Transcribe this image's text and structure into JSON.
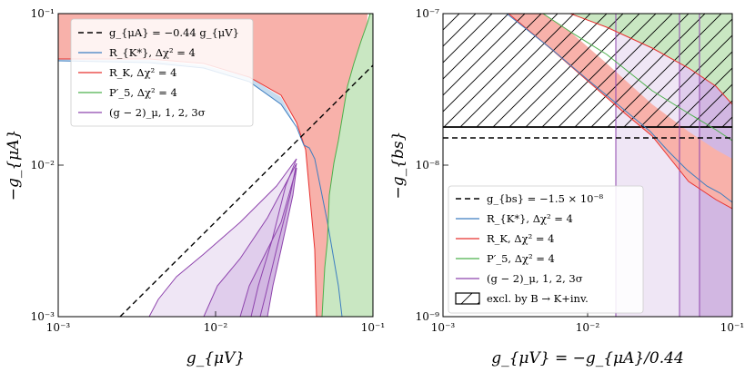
{
  "chart_data": [
    {
      "type": "line",
      "xlabel": "g_{μV}",
      "ylabel": "−g_{μA}",
      "xscale": "log",
      "yscale": "log",
      "xlim": [
        0.001,
        0.1
      ],
      "ylim": [
        0.001,
        0.1
      ],
      "x_ticks": [
        "10⁻³",
        "10⁻²",
        "10⁻¹"
      ],
      "y_ticks": [
        "10⁻³",
        "10⁻²",
        "10⁻¹"
      ],
      "legend": "top-left",
      "series": [
        {
          "name": "g_{μA} = −0.44 g_{μV}",
          "style": "dashed",
          "color": "#000000",
          "x": [
            0.00227,
            0.1
          ],
          "y": [
            0.001,
            0.044
          ]
        },
        {
          "name": "R_{K*}, Δχ² = 4",
          "style": "line",
          "color": "#3d7ec1",
          "x": [
            0.001,
            0.003,
            0.006,
            0.01,
            0.015,
            0.02,
            0.025,
            0.03,
            0.035,
            0.04,
            0.045,
            0.05,
            0.055,
            0.06,
            0.065,
            0.07,
            0.075
          ],
          "y": [
            0.046,
            0.045,
            0.042,
            0.038,
            0.032,
            0.027,
            0.023,
            0.02,
            0.018,
            0.0175,
            0.0165,
            0.011,
            0.0065,
            0.0035,
            0.002,
            0.0012,
            0.001
          ]
        },
        {
          "name": "R_K, Δχ² = 4",
          "style": "filled",
          "color": "#e8312f",
          "fill": "#f8b1aa",
          "x": [
            0.001,
            0.01,
            0.02,
            0.03,
            0.04,
            0.045,
            0.05,
            0.052,
            0.054
          ],
          "y": [
            0.05,
            0.045,
            0.035,
            0.025,
            0.017,
            0.01,
            0.005,
            0.002,
            0.001
          ]
        },
        {
          "name": "P′_5, Δχ² = 4",
          "style": "filled",
          "color": "#4cb04c",
          "fill": "#c9e7c2",
          "x": [
            0.057,
            0.06,
            0.063,
            0.067,
            0.07,
            0.075,
            0.08,
            0.09
          ],
          "y": [
            0.001,
            0.003,
            0.01,
            0.03,
            0.06,
            0.08,
            0.09,
            0.1
          ]
        },
        {
          "name": "(g − 2)_μ, 1, 2, 3σ",
          "style": "bands",
          "color": "#8e44ad",
          "fill": "#e0cdec",
          "x": [
            0.0038,
            0.006,
            0.01,
            0.015,
            0.02,
            0.03,
            0.04
          ],
          "y": [
            0.001,
            0.0018,
            0.003,
            0.0055,
            0.008,
            0.013,
            0.018
          ]
        }
      ]
    },
    {
      "type": "line",
      "xlabel": "g_{μV} = −g_{μA}/0.44",
      "ylabel": "−g_{bs}",
      "xscale": "log",
      "yscale": "log",
      "xlim": [
        0.001,
        0.1
      ],
      "ylim": [
        1e-09,
        1e-07
      ],
      "x_ticks": [
        "10⁻³",
        "10⁻²",
        "10⁻¹"
      ],
      "y_ticks": [
        "10⁻⁹",
        "10⁻⁸",
        "10⁻⁷"
      ],
      "legend": "bottom-left",
      "series": [
        {
          "name": "g_{bs} = −1.5 × 10⁻⁸",
          "style": "dashed",
          "color": "#000000",
          "x": [
            0.001,
            0.1
          ],
          "y": [
            1.5e-08,
            1.5e-08
          ]
        },
        {
          "name": "R_{K*}, Δχ² = 4",
          "style": "line",
          "color": "#3d7ec1",
          "x": [
            0.006,
            0.01,
            0.02,
            0.03,
            0.05,
            0.07,
            0.1
          ],
          "y": [
            1e-07,
            7e-08,
            3.5e-08,
            2.2e-08,
            1.3e-08,
            8.5e-09,
            5.5e-09
          ]
        },
        {
          "name": "R_K, Δχ² = 4",
          "style": "filled",
          "color": "#e8312f",
          "fill": "#f8b1aa",
          "x": [
            0.007,
            0.01,
            0.02,
            0.03,
            0.05,
            0.07,
            0.1
          ],
          "y": [
            1e-07,
            7.5e-08,
            3.5e-08,
            2.2e-08,
            1.2e-08,
            8e-09,
            5e-09
          ]
        },
        {
          "name": "P′_5, Δχ² = 4",
          "style": "filled",
          "color": "#4cb04c",
          "fill": "#c9e7c2",
          "x": [
            0.011,
            0.02,
            0.04,
            0.06,
            0.08,
            0.1
          ],
          "y": [
            1e-07,
            6e-08,
            3e-08,
            2e-08,
            1.5e-08,
            1.2e-08
          ]
        },
        {
          "name": "(g − 2)_μ, 1, 2, 3σ",
          "style": "bands",
          "color": "#8e44ad",
          "fill": "#e0cdec",
          "x_bounds": [
            0.016,
            0.044,
            0.06,
            0.1
          ]
        },
        {
          "name": "excl. by B → K+inv.",
          "style": "hatched",
          "color": "#000000",
          "y_range": [
            1.7e-08,
            1e-07
          ]
        }
      ]
    }
  ]
}
